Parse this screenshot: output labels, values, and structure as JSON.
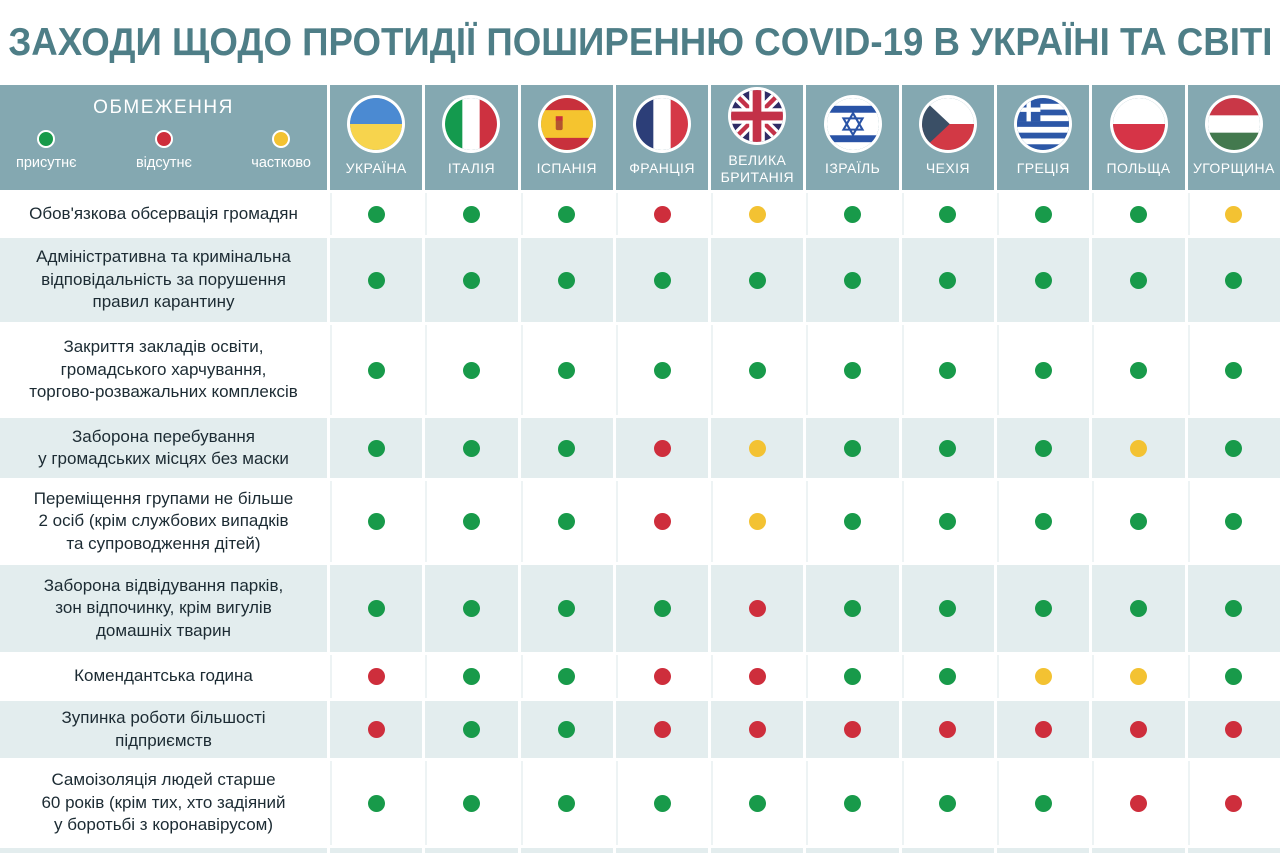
{
  "theme": {
    "header_bg": "#84a8b1",
    "stripe_bg": "#e3edee",
    "title_color": "#4e7e87",
    "gap_color": "#ffffff"
  },
  "chart_data": {
    "type": "table",
    "title": "ЗАХОДИ ЩОДО ПРОТИДІЇ ПОШИРЕННЮ COVID-19 В УКРАЇНІ ТА СВІТІ",
    "corner_header": "ОБМЕЖЕННЯ",
    "legend": [
      {
        "status": "present",
        "label": "присутнє",
        "color": "#189a4a"
      },
      {
        "status": "absent",
        "label": "відсутнє",
        "color": "#ce2e3c"
      },
      {
        "status": "partial",
        "label": "частково",
        "color": "#f3c232"
      }
    ],
    "columns": [
      {
        "label": "УКРАЇНА",
        "flag_icon": "ukraine-flag-icon"
      },
      {
        "label": "ІТАЛІЯ",
        "flag_icon": "italy-flag-icon"
      },
      {
        "label": "ІСПАНІЯ",
        "flag_icon": "spain-flag-icon"
      },
      {
        "label": "ФРАНЦІЯ",
        "flag_icon": "france-flag-icon"
      },
      {
        "label": "ВЕЛИКА БРИТАНІЯ",
        "flag_icon": "uk-flag-icon"
      },
      {
        "label": "ІЗРАЇЛЬ",
        "flag_icon": "israel-flag-icon"
      },
      {
        "label": "ЧЕХІЯ",
        "flag_icon": "czechia-flag-icon"
      },
      {
        "label": "ГРЕЦІЯ",
        "flag_icon": "greece-flag-icon"
      },
      {
        "label": "ПОЛЬЩА",
        "flag_icon": "poland-flag-icon"
      },
      {
        "label": "УГОРЩИНА",
        "flag_icon": "hungary-flag-icon"
      }
    ],
    "rows": [
      {
        "label": "Обов'язкова обсервація громадян",
        "values": [
          "present",
          "present",
          "present",
          "absent",
          "partial",
          "present",
          "present",
          "present",
          "present",
          "partial"
        ]
      },
      {
        "label": "Адміністративна та кримінальна\nвідповідальність за порушення\nправил карантину",
        "values": [
          "present",
          "present",
          "present",
          "present",
          "present",
          "present",
          "present",
          "present",
          "present",
          "present"
        ]
      },
      {
        "label": "Закриття закладів освіти,\nгромадського харчування,\nторгово-розважальних комплексів",
        "values": [
          "present",
          "present",
          "present",
          "present",
          "present",
          "present",
          "present",
          "present",
          "present",
          "present"
        ]
      },
      {
        "label": "Заборона перебування\nу громадських місцях без маски",
        "values": [
          "present",
          "present",
          "present",
          "absent",
          "partial",
          "present",
          "present",
          "present",
          "partial",
          "present"
        ]
      },
      {
        "label": "Переміщення групами не більше\n2 осіб (крім службових випадків\nта супроводження дітей)",
        "values": [
          "present",
          "present",
          "present",
          "absent",
          "partial",
          "present",
          "present",
          "present",
          "present",
          "present"
        ]
      },
      {
        "label": "Заборона відвідування парків,\nзон відпочинку, крім вигулів\nдомашніх тварин",
        "values": [
          "present",
          "present",
          "present",
          "present",
          "absent",
          "present",
          "present",
          "present",
          "present",
          "present"
        ]
      },
      {
        "label": "Комендантська година",
        "values": [
          "absent",
          "present",
          "present",
          "absent",
          "absent",
          "present",
          "present",
          "partial",
          "partial",
          "present"
        ]
      },
      {
        "label": "Зупинка роботи більшості\nпідприємств",
        "values": [
          "absent",
          "present",
          "present",
          "absent",
          "absent",
          "absent",
          "absent",
          "absent",
          "absent",
          "absent"
        ]
      },
      {
        "label": "Самоізоляція людей старше\n60 років (крім тих, хто задіяний\nу боротьбі з коронавірусом)",
        "values": [
          "present",
          "present",
          "present",
          "present",
          "present",
          "present",
          "present",
          "present",
          "absent",
          "absent"
        ]
      }
    ]
  }
}
